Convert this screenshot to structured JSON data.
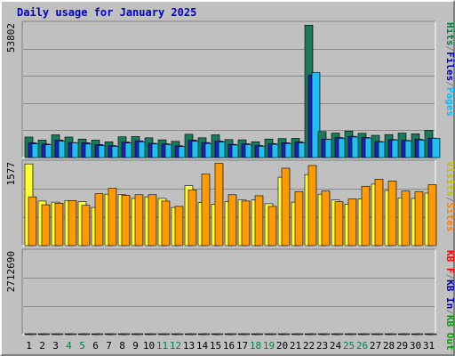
{
  "title": "Daily usage for January 2025",
  "chart_data": {
    "type": "bar",
    "title": "Daily usage for January 2025",
    "categories": [
      "1",
      "2",
      "3",
      "4",
      "5",
      "6",
      "7",
      "8",
      "9",
      "10",
      "11",
      "12",
      "13",
      "14",
      "15",
      "16",
      "17",
      "18",
      "19",
      "20",
      "21",
      "22",
      "23",
      "24",
      "25",
      "26",
      "27",
      "28",
      "29",
      "30",
      "31"
    ],
    "weekend_days": [
      "4",
      "5",
      "11",
      "12",
      "18",
      "19",
      "25",
      "26"
    ],
    "panels": [
      {
        "id": "hits-files-pages",
        "max_label": "53802",
        "ylim": [
          0,
          53802
        ],
        "legend": [
          {
            "text": "Hits",
            "color": "#008040"
          },
          {
            "text": "/",
            "color": "#808080"
          },
          {
            "text": "Files",
            "color": "#0000c0"
          },
          {
            "text": "/",
            "color": "#808080"
          },
          {
            "text": "Pages",
            "color": "#00c0ff"
          }
        ],
        "series": [
          {
            "name": "Hits",
            "color": "#1a7a5c",
            "values": [
              8200,
              7000,
              9100,
              8200,
              7400,
              7000,
              6300,
              8300,
              8400,
              7900,
              7100,
              6500,
              9300,
              7900,
              9100,
              7200,
              7100,
              6300,
              7400,
              7600,
              7700,
              53000,
              10400,
              9800,
              10600,
              9700,
              8900,
              9200,
              9800,
              9500,
              10900
            ]
          },
          {
            "name": "Files",
            "color": "#2020c0",
            "values": [
              5900,
              5400,
              7000,
              6000,
              5900,
              5200,
              4800,
              6200,
              6700,
              5700,
              5500,
              4700,
              7000,
              6000,
              6600,
              5300,
              5500,
              4800,
              5600,
              5900,
              6300,
              33000,
              7400,
              8000,
              8500,
              8000,
              6400,
              7200,
              6900,
              7300,
              7800
            ]
          },
          {
            "name": "Pages",
            "color": "#1ec0f0",
            "values": [
              5500,
              5100,
              6600,
              5900,
              5400,
              4800,
              4500,
              5800,
              6300,
              5400,
              5200,
              4400,
              6500,
              5600,
              6200,
              5000,
              5200,
              4500,
              5300,
              5600,
              5900,
              34000,
              7300,
              7700,
              8200,
              7800,
              6200,
              7000,
              6700,
              7000,
              7700
            ]
          }
        ]
      },
      {
        "id": "visits-sites",
        "max_label": "1577",
        "ylim": [
          0,
          1577
        ],
        "legend": [
          {
            "text": "Visits",
            "color": "#c0c000"
          },
          {
            "text": "/",
            "color": "#808080"
          },
          {
            "text": "Sites",
            "color": "#ff8000"
          }
        ],
        "series": [
          {
            "name": "Visits",
            "color": "#ffff33",
            "values": [
              1540,
              840,
              820,
              850,
              830,
              720,
              970,
              960,
              890,
              920,
              890,
              720,
              1130,
              810,
              780,
              830,
              860,
              860,
              790,
              1290,
              820,
              1340,
              970,
              860,
              780,
              880,
              1160,
              1040,
              900,
              890,
              990
            ]
          },
          {
            "name": "Sites",
            "color": "#ff9a00",
            "values": [
              920,
              770,
              800,
              850,
              760,
              980,
              1080,
              950,
              960,
              960,
              840,
              740,
              1050,
              1350,
              1550,
              960,
              840,
              940,
              740,
              1460,
              1020,
              1510,
              1030,
              830,
              880,
              1120,
              1250,
              1220,
              1030,
              1020,
              1150
            ]
          }
        ]
      },
      {
        "id": "kb",
        "max_label": "2712690",
        "ylim": [
          0,
          2712690
        ],
        "legend": [
          {
            "text": "KB F",
            "color": "#ff0000"
          },
          {
            "text": "/",
            "color": "#808080"
          },
          {
            "text": "KB In",
            "color": "#0000c0"
          },
          {
            "text": "/",
            "color": "#808080"
          },
          {
            "text": "KB Out",
            "color": "#00a000"
          }
        ],
        "series": [
          {
            "name": "KB F",
            "color": "#e01010",
            "values": [
              620,
              630,
              560,
              580,
              530,
              580,
              570,
              600,
              770,
              580,
              1250,
              540,
              580,
              560,
              570,
              530,
              560,
              540,
              530,
              560,
              780,
              1030,
              600,
              1200,
              1180,
              1910,
              910,
              950,
              1080,
              1220,
              2900
            ]
          },
          {
            "name": "KB Out",
            "color": "#22cc33",
            "values": [
              640,
              640,
              600,
              560,
              540,
              580,
              580,
              600,
              740,
              680,
              610,
              550,
              580,
              560,
              640,
              540,
              580,
              540,
              530,
              600,
              590,
              1070,
              640,
              1180,
              1200,
              1200,
              890,
              940,
              1060,
              1210,
              1410
            ]
          }
        ]
      }
    ]
  }
}
